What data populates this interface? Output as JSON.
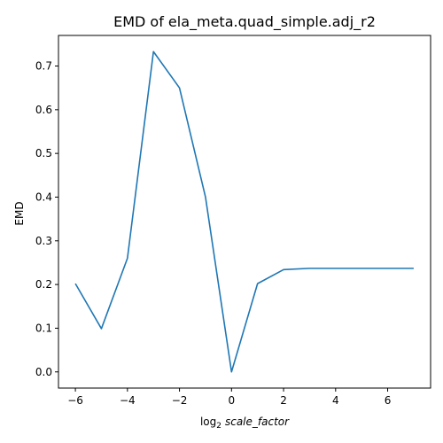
{
  "chart_data": {
    "type": "line",
    "title": "EMD of ela_meta.quad_simple.adj_r2",
    "xlabel_prefix": "log",
    "xlabel_sub": "2",
    "xlabel_main": "scale_factor",
    "ylabel": "EMD",
    "xlim": [
      -6.65,
      7.65
    ],
    "ylim": [
      -0.037,
      0.77
    ],
    "xticks": [
      -6,
      -4,
      -2,
      0,
      2,
      4,
      6
    ],
    "xtick_labels": [
      "−6",
      "−4",
      "−2",
      "0",
      "2",
      "4",
      "6"
    ],
    "yticks": [
      0.0,
      0.1,
      0.2,
      0.3,
      0.4,
      0.5,
      0.6,
      0.7
    ],
    "ytick_labels": [
      "0.0",
      "0.1",
      "0.2",
      "0.3",
      "0.4",
      "0.5",
      "0.6",
      "0.7"
    ],
    "grid": false,
    "color": "#1f77b4",
    "series": [
      {
        "x": [
          -6,
          -5,
          -4,
          -3,
          -2,
          -1,
          0,
          1,
          2,
          3,
          4,
          5,
          6,
          7
        ],
        "y": [
          0.202,
          0.099,
          0.26,
          0.733,
          0.65,
          0.4,
          0.0,
          0.202,
          0.234,
          0.237,
          0.237,
          0.237,
          0.237,
          0.237
        ]
      }
    ]
  }
}
